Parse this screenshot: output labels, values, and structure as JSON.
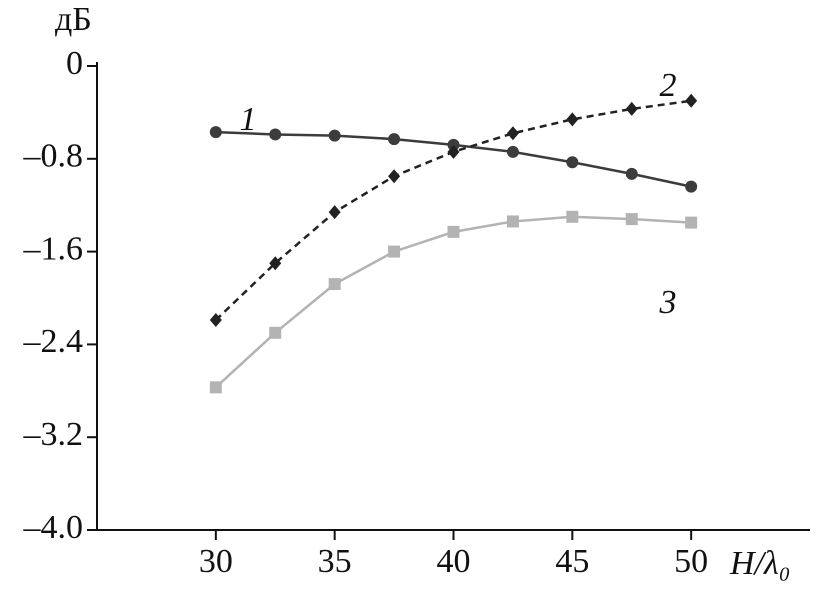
{
  "chart_data": {
    "type": "line",
    "y_label": "дБ",
    "x_label": "H/λ₀",
    "x": [
      30,
      32.5,
      35,
      37.5,
      40,
      42.5,
      45,
      47.5,
      50
    ],
    "xlim": [
      25,
      55
    ],
    "xticks": [
      30,
      35,
      40,
      45,
      50
    ],
    "ylim": [
      -4,
      0
    ],
    "yticks": [
      0,
      {
        "value": -0.8,
        "label": "–0.8"
      },
      {
        "value": -1.6,
        "label": "–1.6"
      },
      {
        "value": -2.4,
        "label": "–2.4"
      },
      {
        "value": -3.2,
        "label": "–3.2"
      },
      {
        "value": -4,
        "label": "–4.0"
      }
    ],
    "series": [
      {
        "name": "1",
        "color": "#3c3c3c",
        "marker": "circle",
        "dashed": false,
        "values": [
          -0.57,
          -0.59,
          -0.6,
          -0.63,
          -0.68,
          -0.74,
          -0.83,
          -0.93,
          -1.04
        ]
      },
      {
        "name": "2",
        "color": "#222222",
        "marker": "diamond",
        "dashed": true,
        "values": [
          -2.19,
          -1.7,
          -1.26,
          -0.95,
          -0.74,
          -0.58,
          -0.46,
          -0.37,
          -0.3
        ]
      },
      {
        "name": "3",
        "color": "#b3b3b3",
        "marker": "square",
        "dashed": false,
        "values": [
          -2.77,
          -2.3,
          -1.88,
          -1.6,
          -1.43,
          -1.34,
          -1.3,
          -1.32,
          -1.35
        ]
      }
    ]
  }
}
